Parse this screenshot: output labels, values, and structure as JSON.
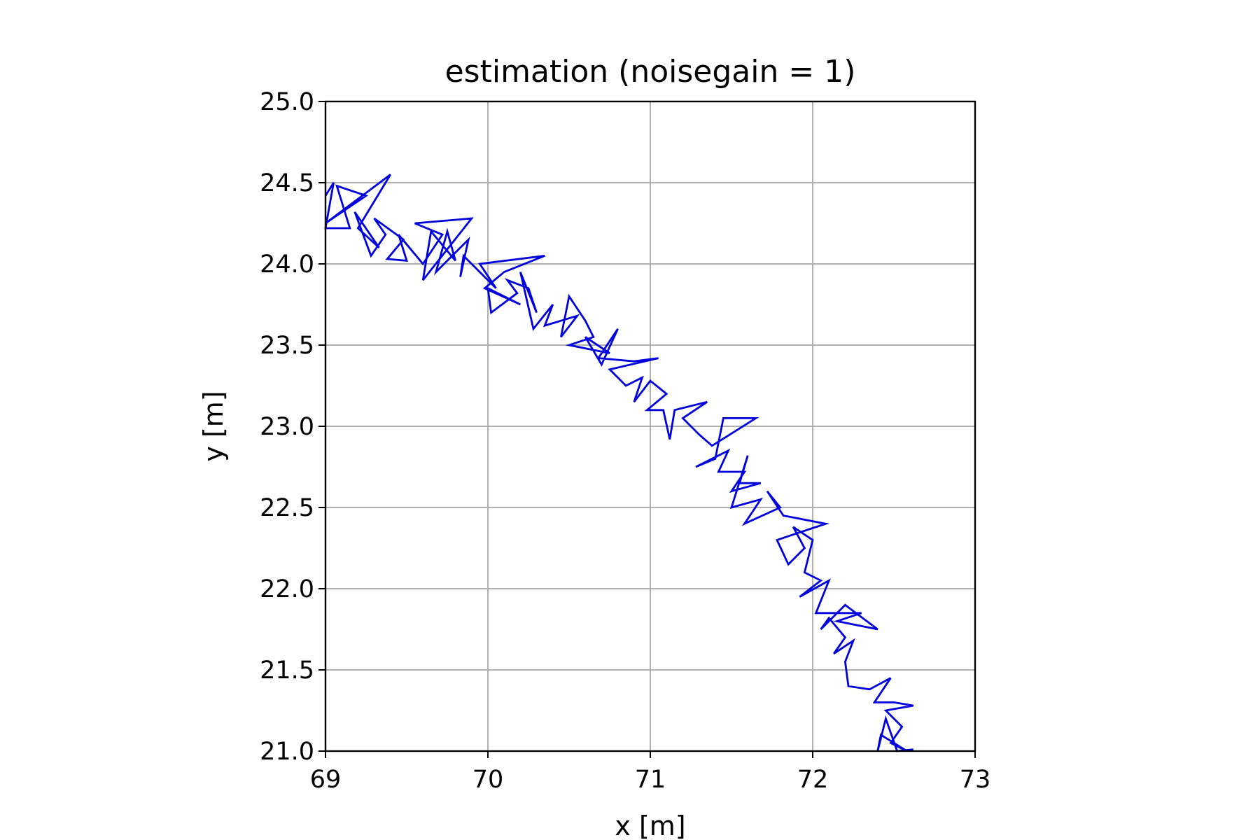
{
  "chart_data": {
    "type": "line",
    "title": "estimation (noisegain = 1)",
    "xlabel": "x [m]",
    "ylabel": "y [m]",
    "xlim": [
      69,
      73
    ],
    "ylim": [
      21.0,
      25.0
    ],
    "x_ticks": [
      "69",
      "70",
      "71",
      "72",
      "73"
    ],
    "y_ticks": [
      "21.0",
      "21.5",
      "22.0",
      "22.5",
      "23.0",
      "23.5",
      "24.0",
      "24.5",
      "25.0"
    ],
    "grid": true,
    "legend": "none",
    "series": [
      {
        "color": "#0000dd",
        "points": [
          [
            69.0,
            24.42
          ],
          [
            69.05,
            24.5
          ],
          [
            69.0,
            24.22
          ],
          [
            69.15,
            24.22
          ],
          [
            69.07,
            24.48
          ],
          [
            69.25,
            24.42
          ],
          [
            69.0,
            24.25
          ],
          [
            69.4,
            24.55
          ],
          [
            69.2,
            24.22
          ],
          [
            69.33,
            24.1
          ],
          [
            69.18,
            24.32
          ],
          [
            69.28,
            24.05
          ],
          [
            69.37,
            24.18
          ],
          [
            69.3,
            24.28
          ],
          [
            69.48,
            24.15
          ],
          [
            69.38,
            24.03
          ],
          [
            69.5,
            24.02
          ],
          [
            69.45,
            24.18
          ],
          [
            69.6,
            24.0
          ],
          [
            69.72,
            24.18
          ],
          [
            69.55,
            24.25
          ],
          [
            69.9,
            24.28
          ],
          [
            69.6,
            23.9
          ],
          [
            69.65,
            24.2
          ],
          [
            69.8,
            24.02
          ],
          [
            69.75,
            24.2
          ],
          [
            69.68,
            23.95
          ],
          [
            69.88,
            24.15
          ],
          [
            69.83,
            23.92
          ],
          [
            69.85,
            24.05
          ],
          [
            70.05,
            23.85
          ],
          [
            69.95,
            24.0
          ],
          [
            70.35,
            24.05
          ],
          [
            70.1,
            23.95
          ],
          [
            69.98,
            23.85
          ],
          [
            70.2,
            23.75
          ],
          [
            70.0,
            23.85
          ],
          [
            70.02,
            23.7
          ],
          [
            70.18,
            23.82
          ],
          [
            70.12,
            23.9
          ],
          [
            70.25,
            23.85
          ],
          [
            70.3,
            23.7
          ],
          [
            70.2,
            23.95
          ],
          [
            70.28,
            23.6
          ],
          [
            70.4,
            23.75
          ],
          [
            70.35,
            23.62
          ],
          [
            70.55,
            23.68
          ],
          [
            70.45,
            23.55
          ],
          [
            70.5,
            23.8
          ],
          [
            70.6,
            23.65
          ],
          [
            70.65,
            23.55
          ],
          [
            70.5,
            23.5
          ],
          [
            70.75,
            23.45
          ],
          [
            70.6,
            23.55
          ],
          [
            70.7,
            23.38
          ],
          [
            70.8,
            23.6
          ],
          [
            70.68,
            23.42
          ],
          [
            70.9,
            23.4
          ],
          [
            71.05,
            23.42
          ],
          [
            70.75,
            23.35
          ],
          [
            70.85,
            23.25
          ],
          [
            70.95,
            23.3
          ],
          [
            70.9,
            23.15
          ],
          [
            71.0,
            23.28
          ],
          [
            71.1,
            23.2
          ],
          [
            70.98,
            23.1
          ],
          [
            71.08,
            23.1
          ],
          [
            71.12,
            22.92
          ],
          [
            71.15,
            23.1
          ],
          [
            71.35,
            23.15
          ],
          [
            71.2,
            23.05
          ],
          [
            71.3,
            22.95
          ],
          [
            71.38,
            22.88
          ],
          [
            71.65,
            23.05
          ],
          [
            71.45,
            23.05
          ],
          [
            71.4,
            22.8
          ],
          [
            71.28,
            22.75
          ],
          [
            71.48,
            22.85
          ],
          [
            71.42,
            22.72
          ],
          [
            71.58,
            22.72
          ],
          [
            71.5,
            22.6
          ],
          [
            71.68,
            22.65
          ],
          [
            71.55,
            22.65
          ],
          [
            71.6,
            22.82
          ],
          [
            71.5,
            22.5
          ],
          [
            71.68,
            22.55
          ],
          [
            71.58,
            22.4
          ],
          [
            71.8,
            22.5
          ],
          [
            71.72,
            22.6
          ],
          [
            71.82,
            22.45
          ],
          [
            72.08,
            22.4
          ],
          [
            71.78,
            22.3
          ],
          [
            71.85,
            22.15
          ],
          [
            71.95,
            22.25
          ],
          [
            71.88,
            22.38
          ],
          [
            72.0,
            22.3
          ],
          [
            71.95,
            22.1
          ],
          [
            72.05,
            22.05
          ],
          [
            71.92,
            21.95
          ],
          [
            72.1,
            22.05
          ],
          [
            72.02,
            21.85
          ],
          [
            72.3,
            21.85
          ],
          [
            72.15,
            21.8
          ],
          [
            72.4,
            21.75
          ],
          [
            72.2,
            21.9
          ],
          [
            72.05,
            21.75
          ],
          [
            72.1,
            21.82
          ],
          [
            72.2,
            21.7
          ],
          [
            72.13,
            21.6
          ],
          [
            72.25,
            21.68
          ],
          [
            72.2,
            21.55
          ],
          [
            72.22,
            21.4
          ],
          [
            72.35,
            21.38
          ],
          [
            72.48,
            21.45
          ],
          [
            72.38,
            21.3
          ],
          [
            72.5,
            21.3
          ],
          [
            72.62,
            21.28
          ],
          [
            72.45,
            21.25
          ],
          [
            72.55,
            21.15
          ],
          [
            72.48,
            21.05
          ],
          [
            72.58,
            21.0
          ],
          [
            72.42,
            21.1
          ],
          [
            72.4,
            21.0
          ],
          [
            72.45,
            21.2
          ],
          [
            72.52,
            21.0
          ],
          [
            72.62,
            21.01
          ]
        ]
      }
    ]
  }
}
